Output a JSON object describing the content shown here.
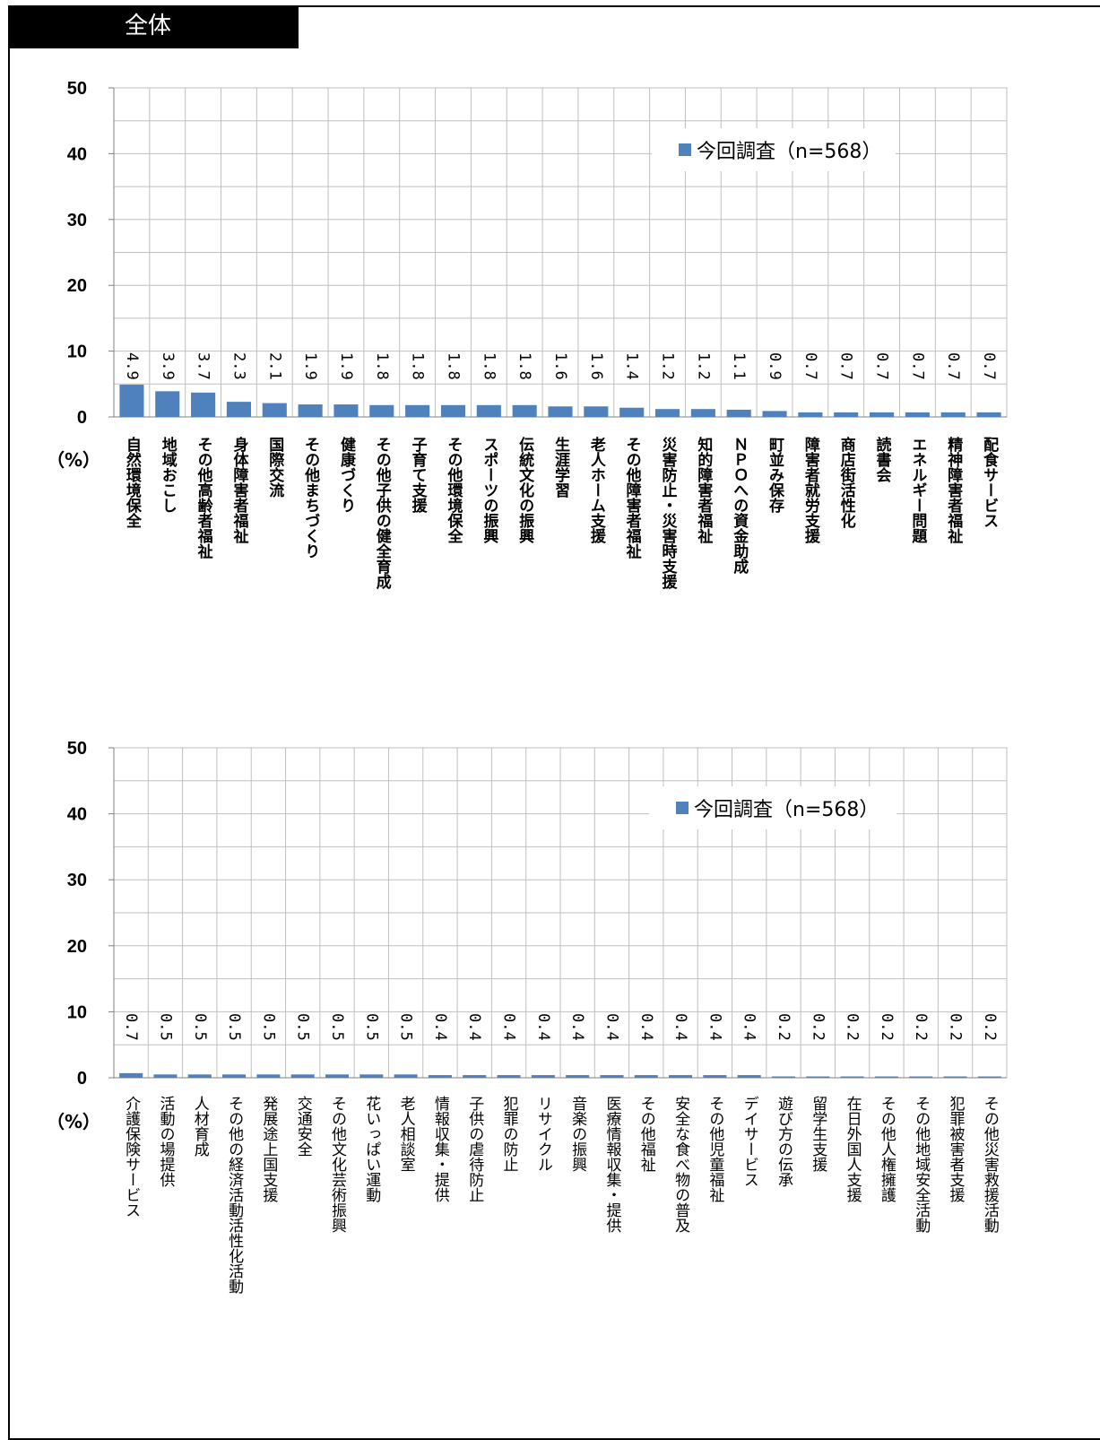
{
  "header": {
    "title": "全体"
  },
  "colors": {
    "bar": "#4f81bd",
    "grid": "#bfbfbf",
    "axis": "#808080"
  },
  "chart_data": [
    {
      "type": "bar",
      "unit_label": "（%）",
      "legend": "今回調査（n=568）",
      "legend_position": "top-right",
      "grid": true,
      "ylim": [
        0,
        50
      ],
      "yticks": [
        0,
        10,
        20,
        30,
        40,
        50
      ],
      "categories": [
        "自然環境保全",
        "地域おこし",
        "その他高齢者福祉",
        "身体障害者福祉",
        "国際交流",
        "その他まちづくり",
        "健康づくり",
        "その他子供の健全育成",
        "子育て支援",
        "その他環境保全",
        "スポーツの振興",
        "伝統文化の振興",
        "生涯学習",
        "老人ホーム支援",
        "その他障害者福祉",
        "災害防止・災害時支援",
        "知的障害者福祉",
        "ＮＰＯへの資金助成",
        "町並み保存",
        "障害者就労支援",
        "商店街活性化",
        "読書会",
        "エネルギー問題",
        "精神障害者福祉",
        "配食サービス"
      ],
      "series": [
        {
          "name": "今回調査（n=568）",
          "values": [
            4.9,
            3.9,
            3.7,
            2.3,
            2.1,
            1.9,
            1.9,
            1.8,
            1.8,
            1.8,
            1.8,
            1.8,
            1.6,
            1.6,
            1.4,
            1.2,
            1.2,
            1.1,
            0.9,
            0.7,
            0.7,
            0.7,
            0.7,
            0.7,
            0.7
          ]
        }
      ]
    },
    {
      "type": "bar",
      "unit_label": "（%）",
      "legend": "今回調査（n=568）",
      "legend_position": "top-right",
      "grid": true,
      "ylim": [
        0,
        50
      ],
      "yticks": [
        0,
        10,
        20,
        30,
        40,
        50
      ],
      "categories": [
        "介護保険サービス",
        "活動の場提供",
        "人材育成",
        "その他の経済活動活性化活動",
        "発展途上国支援",
        "交通安全",
        "その他文化芸術振興",
        "花いっぱい運動",
        "老人相談室",
        "情報収集・提供",
        "子供の虐待防止",
        "犯罪の防止",
        "リサイクル",
        "音楽の振興",
        "医療情報収集・提供",
        "その他福祉",
        "安全な食べ物の普及",
        "その他児童福祉",
        "デイサービス",
        "遊び方の伝承",
        "留学生支援",
        "在日外国人支援",
        "その他人権擁護",
        "その他地域安全活動",
        "犯罪被害者支援",
        "その他災害救援活動"
      ],
      "series": [
        {
          "name": "今回調査（n=568）",
          "values": [
            0.7,
            0.5,
            0.5,
            0.5,
            0.5,
            0.5,
            0.5,
            0.5,
            0.5,
            0.4,
            0.4,
            0.4,
            0.4,
            0.4,
            0.4,
            0.4,
            0.4,
            0.4,
            0.4,
            0.2,
            0.2,
            0.2,
            0.2,
            0.2,
            0.2,
            0.2
          ]
        }
      ]
    }
  ]
}
